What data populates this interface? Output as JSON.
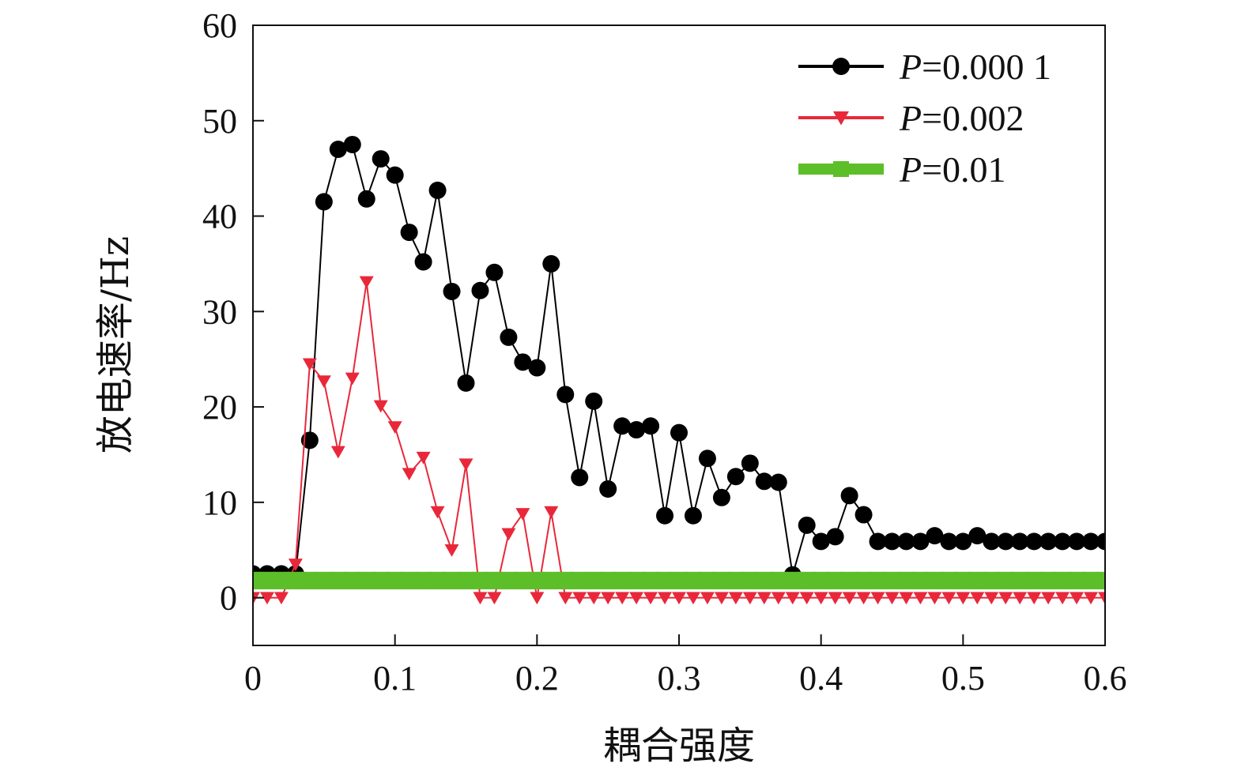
{
  "chart_data": {
    "type": "line",
    "xlabel": "耦合强度",
    "ylabel": "放电速率/Hz",
    "xlim": [
      0,
      0.6
    ],
    "ylim": [
      -5,
      60
    ],
    "x_ticks": [
      "0",
      "0.1",
      "0.2",
      "0.3",
      "0.4",
      "0.5",
      "0.6"
    ],
    "y_ticks": [
      "0",
      "10",
      "20",
      "30",
      "40",
      "50",
      "60"
    ],
    "grid": false,
    "legend_position": "top-right",
    "x": [
      0,
      0.01,
      0.02,
      0.03,
      0.04,
      0.05,
      0.06,
      0.07,
      0.08,
      0.09,
      0.1,
      0.11,
      0.12,
      0.13,
      0.14,
      0.15,
      0.16,
      0.17,
      0.18,
      0.19,
      0.2,
      0.21,
      0.22,
      0.23,
      0.24,
      0.25,
      0.26,
      0.27,
      0.28,
      0.29,
      0.3,
      0.31,
      0.32,
      0.33,
      0.34,
      0.35,
      0.36,
      0.37,
      0.38,
      0.39,
      0.4,
      0.41,
      0.42,
      0.43,
      0.44,
      0.45,
      0.46,
      0.47,
      0.48,
      0.49,
      0.5,
      0.51,
      0.52,
      0.53,
      0.54,
      0.55,
      0.56,
      0.57,
      0.58,
      0.59,
      0.6
    ],
    "series": [
      {
        "name": "P=0.000 1",
        "name_italic": "P",
        "name_rest": "=0.000 1",
        "color": "#000000",
        "marker": "circle",
        "values": [
          2.5,
          2.5,
          2.5,
          2.5,
          16.5,
          41.5,
          47.0,
          47.5,
          41.8,
          46.0,
          44.3,
          38.3,
          35.2,
          42.7,
          32.1,
          22.5,
          32.2,
          34.1,
          27.3,
          24.7,
          24.1,
          35.0,
          21.3,
          12.6,
          20.6,
          11.4,
          18.0,
          17.6,
          18.0,
          8.6,
          17.3,
          8.6,
          14.6,
          10.5,
          12.7,
          14.1,
          12.2,
          12.1,
          2.4,
          7.6,
          5.9,
          6.4,
          10.7,
          8.7,
          5.9,
          5.9,
          5.9,
          5.9,
          6.5,
          5.9,
          5.9,
          6.5,
          5.9,
          5.9,
          5.9,
          5.9,
          5.9,
          5.9,
          5.9,
          5.9,
          5.9
        ]
      },
      {
        "name": "P=0.002",
        "name_italic": "P",
        "name_rest": "=0.002",
        "color": "#e8283a",
        "marker": "triangle-down",
        "values": [
          0,
          0,
          0,
          3.5,
          24.5,
          22.7,
          15.3,
          23.0,
          33.1,
          20.1,
          17.9,
          13.0,
          14.7,
          9.0,
          5.0,
          14.0,
          0,
          0,
          6.7,
          8.8,
          0,
          9.0,
          0,
          0,
          0,
          0,
          0,
          0,
          0,
          0,
          0,
          0,
          0,
          0,
          0,
          0,
          0,
          0,
          0,
          0,
          0,
          0,
          0,
          0,
          0,
          0,
          0,
          0,
          0,
          0,
          0,
          0,
          0,
          0,
          0,
          0,
          0,
          0,
          0,
          0,
          0
        ]
      },
      {
        "name": "P=0.01",
        "name_italic": "P",
        "name_rest": "=0.01",
        "color": "#5cbf2a",
        "marker": "square",
        "values": [
          1.8,
          1.8,
          1.8,
          1.8,
          1.8,
          1.8,
          1.8,
          1.8,
          1.8,
          1.8,
          1.8,
          1.8,
          1.8,
          1.8,
          1.8,
          1.8,
          1.8,
          1.8,
          1.8,
          1.8,
          1.8,
          1.8,
          1.8,
          1.8,
          1.8,
          1.8,
          1.8,
          1.8,
          1.8,
          1.8,
          1.8,
          1.8,
          1.8,
          1.8,
          1.8,
          1.8,
          1.8,
          1.8,
          1.8,
          1.8,
          1.8,
          1.8,
          1.8,
          1.8,
          1.8,
          1.8,
          1.8,
          1.8,
          1.8,
          1.8,
          1.8,
          1.8,
          1.8,
          1.8,
          1.8,
          1.8,
          1.8,
          1.8,
          1.8,
          1.8,
          1.8
        ]
      }
    ]
  }
}
